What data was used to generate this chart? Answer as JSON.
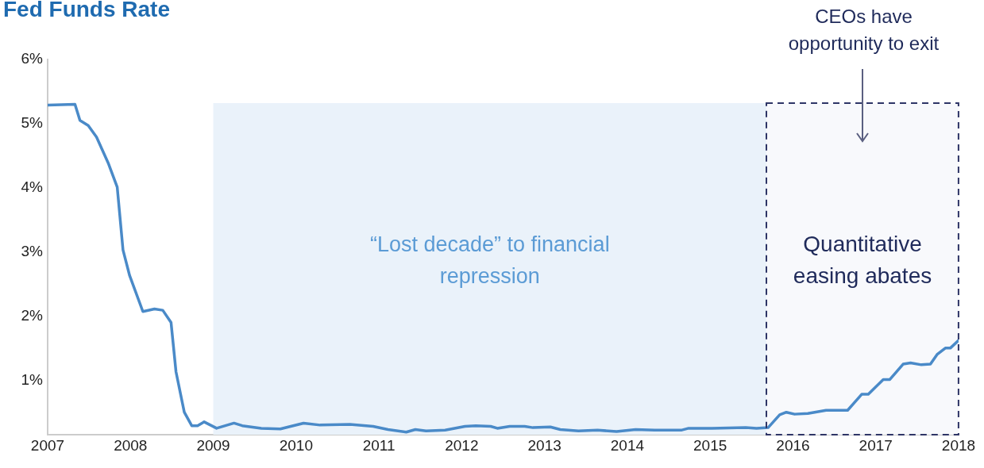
{
  "chart_data": {
    "type": "line",
    "title": "Fed Funds Rate",
    "x": [
      2007.0,
      2007.33,
      2007.39,
      2007.49,
      2007.59,
      2007.73,
      2007.84,
      2007.91,
      2007.99,
      2008.15,
      2008.29,
      2008.39,
      2008.49,
      2008.55,
      2008.65,
      2008.74,
      2008.81,
      2008.89,
      2009.04,
      2009.25,
      2009.35,
      2009.58,
      2009.81,
      2010.09,
      2010.29,
      2010.65,
      2010.93,
      2011.11,
      2011.33,
      2011.44,
      2011.57,
      2011.8,
      2012.04,
      2012.17,
      2012.35,
      2012.43,
      2012.58,
      2012.76,
      2012.86,
      2013.07,
      2013.19,
      2013.41,
      2013.64,
      2013.87,
      2014.1,
      2014.33,
      2014.65,
      2014.74,
      2015.02,
      2015.43,
      2015.56,
      2015.7,
      2015.84,
      2015.92,
      2016.02,
      2016.18,
      2016.4,
      2016.66,
      2016.83,
      2016.91,
      2017.09,
      2017.17,
      2017.33,
      2017.42,
      2017.55,
      2017.66,
      2017.74,
      2017.84,
      2017.9,
      2018.0
    ],
    "series": [
      {
        "color": "#4a8ac8",
        "values": [
          5.29,
          5.3,
          5.05,
          4.97,
          4.79,
          4.39,
          4.01,
          3.03,
          2.63,
          2.07,
          2.11,
          2.09,
          1.9,
          1.13,
          0.5,
          0.29,
          0.29,
          0.35,
          0.25,
          0.33,
          0.29,
          0.25,
          0.24,
          0.33,
          0.3,
          0.31,
          0.28,
          0.23,
          0.19,
          0.23,
          0.21,
          0.22,
          0.28,
          0.29,
          0.28,
          0.25,
          0.28,
          0.28,
          0.26,
          0.27,
          0.23,
          0.21,
          0.22,
          0.2,
          0.23,
          0.22,
          0.22,
          0.25,
          0.25,
          0.26,
          0.25,
          0.26,
          0.46,
          0.5,
          0.47,
          0.48,
          0.53,
          0.53,
          0.78,
          0.78,
          1.01,
          1.01,
          1.25,
          1.27,
          1.24,
          1.25,
          1.4,
          1.5,
          1.5,
          1.62
        ]
      }
    ],
    "xlim": [
      2007,
      2018
    ],
    "xticks": [
      2007,
      2008,
      2009,
      2010,
      2011,
      2012,
      2013,
      2014,
      2015,
      2016,
      2017,
      2018
    ],
    "ylim": [
      0.15,
      6
    ],
    "yticks": [
      {
        "value": 1,
        "label": "1%"
      },
      {
        "value": 2,
        "label": "2%"
      },
      {
        "value": 3,
        "label": "3%"
      },
      {
        "value": 4,
        "label": "4%"
      },
      {
        "value": 5,
        "label": "5%"
      },
      {
        "value": 6,
        "label": "6%"
      }
    ],
    "grid": false,
    "legend": false,
    "marker": "none",
    "line_style": "solid",
    "bands": [
      {
        "axis": "x",
        "from": 2009,
        "to": 2015.68,
        "label": "“Lost decade” to financial repression",
        "color": "#eaf2fa"
      },
      {
        "axis": "x",
        "from": 2015.68,
        "to": 2018,
        "label": "Quantitative easing abates",
        "color": "#f8f9fc"
      }
    ],
    "annotations": [
      "CEOs have opportunity to exit"
    ]
  }
}
